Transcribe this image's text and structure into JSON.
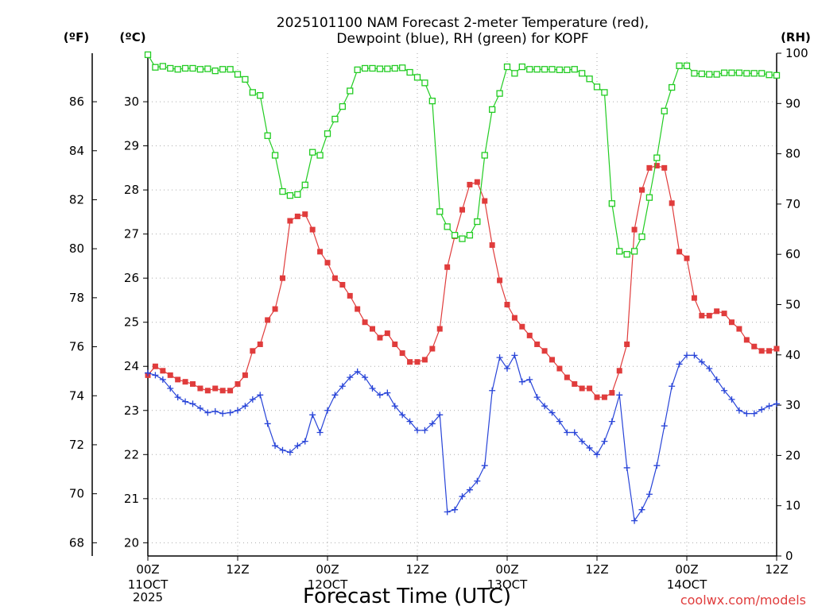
{
  "chart_data": {
    "type": "line",
    "title_line1": "2025101100 NAM Forecast 2-meter Temperature (red),",
    "title_line2": "Dewpoint (blue), RH (green) for KOPF",
    "xlabel": "Forecast Time (UTC)",
    "credit": "coolwx.com/models",
    "units": {
      "fahrenheit": "(ºF)",
      "celsius": "(ºC)",
      "rh": "(RH)"
    },
    "xlim": [
      0,
      84
    ],
    "ylim_c": [
      19.7,
      31.1
    ],
    "ylim_rh": [
      0,
      100
    ],
    "x_ticks": [
      {
        "x": 0,
        "label": "00Z",
        "sub1": "11OCT",
        "sub2": "2025"
      },
      {
        "x": 12,
        "label": "12Z",
        "sub1": "",
        "sub2": ""
      },
      {
        "x": 24,
        "label": "00Z",
        "sub1": "12OCT",
        "sub2": ""
      },
      {
        "x": 36,
        "label": "12Z",
        "sub1": "",
        "sub2": ""
      },
      {
        "x": 48,
        "label": "00Z",
        "sub1": "13OCT",
        "sub2": ""
      },
      {
        "x": 60,
        "label": "12Z",
        "sub1": "",
        "sub2": ""
      },
      {
        "x": 72,
        "label": "00Z",
        "sub1": "14OCT",
        "sub2": ""
      },
      {
        "x": 84,
        "label": "12Z",
        "sub1": "",
        "sub2": ""
      }
    ],
    "y_ticks_c": [
      20,
      21,
      22,
      23,
      24,
      25,
      26,
      27,
      28,
      29,
      30
    ],
    "y_ticks_f": [
      68,
      70,
      72,
      74,
      76,
      78,
      80,
      82,
      84,
      86
    ],
    "y_ticks_rh": [
      0,
      10,
      20,
      30,
      40,
      50,
      60,
      70,
      80,
      90,
      100
    ],
    "series": [
      {
        "name": "Temperature (°C)",
        "color": "#e03c3c",
        "marker": "filled-square",
        "axis": "c",
        "x": [
          0,
          1,
          2,
          3,
          4,
          5,
          6,
          7,
          8,
          9,
          10,
          11,
          12,
          13,
          14,
          15,
          16,
          17,
          18,
          19,
          20,
          21,
          22,
          23,
          24,
          25,
          26,
          27,
          28,
          29,
          30,
          31,
          32,
          33,
          34,
          35,
          36,
          37,
          38,
          39,
          40,
          41,
          42,
          43,
          44,
          45,
          46,
          47,
          48,
          49,
          50,
          51,
          52,
          53,
          54,
          55,
          56,
          57,
          58,
          59,
          60,
          61,
          62,
          63,
          64,
          65,
          66,
          67,
          68,
          69,
          70,
          71,
          72,
          73,
          74,
          75,
          76,
          77,
          78,
          79,
          80,
          81,
          82,
          83,
          84
        ],
        "y": [
          23.8,
          24.0,
          23.9,
          23.8,
          23.7,
          23.65,
          23.6,
          23.5,
          23.45,
          23.5,
          23.45,
          23.45,
          23.6,
          23.8,
          24.35,
          24.5,
          25.05,
          25.3,
          26.0,
          27.3,
          27.4,
          27.45,
          27.1,
          26.6,
          26.35,
          26.0,
          25.85,
          25.6,
          25.3,
          25.0,
          24.85,
          24.65,
          24.75,
          24.5,
          24.3,
          24.1,
          24.1,
          24.15,
          24.4,
          24.85,
          26.25,
          26.95,
          27.55,
          28.12,
          28.18,
          27.75,
          26.75,
          25.95,
          25.4,
          25.1,
          24.9,
          24.7,
          24.5,
          24.35,
          24.15,
          23.95,
          23.75,
          23.6,
          23.5,
          23.5,
          23.3,
          23.3,
          23.4,
          23.9,
          24.5,
          27.1,
          28.0,
          28.5,
          28.55,
          28.5,
          27.7,
          26.6,
          26.45,
          25.55,
          25.15,
          25.15,
          25.25,
          25.2,
          25.0,
          24.85,
          24.6,
          24.45,
          24.35,
          24.35,
          24.4
        ]
      },
      {
        "name": "Dewpoint (°C)",
        "color": "#2844d8",
        "marker": "plus",
        "axis": "c",
        "x": [
          0,
          1,
          2,
          3,
          4,
          5,
          6,
          7,
          8,
          9,
          10,
          11,
          12,
          13,
          14,
          15,
          16,
          17,
          18,
          19,
          20,
          21,
          22,
          23,
          24,
          25,
          26,
          27,
          28,
          29,
          30,
          31,
          32,
          33,
          34,
          35,
          36,
          37,
          38,
          39,
          40,
          41,
          42,
          43,
          44,
          45,
          46,
          47,
          48,
          49,
          50,
          51,
          52,
          53,
          54,
          55,
          56,
          57,
          58,
          59,
          60,
          61,
          62,
          63,
          64,
          65,
          66,
          67,
          68,
          69,
          70,
          71,
          72,
          73,
          74,
          75,
          76,
          77,
          78,
          79,
          80,
          81,
          82,
          83,
          84
        ],
        "y": [
          23.85,
          23.8,
          23.7,
          23.5,
          23.3,
          23.2,
          23.15,
          23.05,
          22.95,
          22.98,
          22.93,
          22.95,
          23.0,
          23.1,
          23.25,
          23.35,
          22.7,
          22.2,
          22.1,
          22.05,
          22.2,
          22.3,
          22.9,
          22.5,
          23.0,
          23.35,
          23.55,
          23.75,
          23.88,
          23.75,
          23.5,
          23.35,
          23.4,
          23.1,
          22.9,
          22.75,
          22.55,
          22.55,
          22.7,
          22.9,
          20.7,
          20.75,
          21.05,
          21.2,
          21.4,
          21.75,
          23.45,
          24.2,
          23.95,
          24.25,
          23.65,
          23.7,
          23.3,
          23.1,
          22.95,
          22.75,
          22.5,
          22.5,
          22.3,
          22.15,
          22.0,
          22.3,
          22.75,
          23.35,
          21.7,
          20.5,
          20.75,
          21.1,
          21.75,
          22.65,
          23.55,
          24.05,
          24.25,
          24.25,
          24.1,
          23.95,
          23.7,
          23.45,
          23.25,
          23.0,
          22.93,
          22.93,
          23.02,
          23.1,
          23.15
        ]
      },
      {
        "name": "RH (%)",
        "color": "#22cc22",
        "marker": "open-square",
        "axis": "rh",
        "x": [
          0,
          1,
          2,
          3,
          4,
          5,
          6,
          7,
          8,
          9,
          10,
          11,
          12,
          13,
          14,
          15,
          16,
          17,
          18,
          19,
          20,
          21,
          22,
          23,
          24,
          25,
          26,
          27,
          28,
          29,
          30,
          31,
          32,
          33,
          34,
          35,
          36,
          37,
          38,
          39,
          40,
          41,
          42,
          43,
          44,
          45,
          46,
          47,
          48,
          49,
          50,
          51,
          52,
          53,
          54,
          55,
          56,
          57,
          58,
          59,
          60,
          61,
          62,
          63,
          64,
          65,
          66,
          67,
          68,
          69,
          70,
          71,
          72,
          73,
          74,
          75,
          76,
          77,
          78,
          79,
          80,
          81,
          82,
          83,
          84
        ],
        "y": [
          99.7,
          97.2,
          97.4,
          97.0,
          96.8,
          97.0,
          97.0,
          96.8,
          96.9,
          96.5,
          96.8,
          96.8,
          95.8,
          94.8,
          92.2,
          91.6,
          83.6,
          79.7,
          72.5,
          71.7,
          71.9,
          73.8,
          80.3,
          79.7,
          84.0,
          86.9,
          89.4,
          92.5,
          96.7,
          97.0,
          97.0,
          96.9,
          96.9,
          97.0,
          97.1,
          96.2,
          95.2,
          94.1,
          90.5,
          68.5,
          65.5,
          63.8,
          63.1,
          63.8,
          66.5,
          79.7,
          88.8,
          92.0,
          97.3,
          96.0,
          97.3,
          96.8,
          96.8,
          96.8,
          96.8,
          96.7,
          96.7,
          96.8,
          96.0,
          94.9,
          93.3,
          92.2,
          70.1,
          60.6,
          60.0,
          60.6,
          63.5,
          71.3,
          79.2,
          88.5,
          93.2,
          97.5,
          97.5,
          96.0,
          95.9,
          95.8,
          95.8,
          96.1,
          96.1,
          96.1,
          96.0,
          96.0,
          96.0,
          95.7,
          95.6
        ]
      }
    ]
  }
}
